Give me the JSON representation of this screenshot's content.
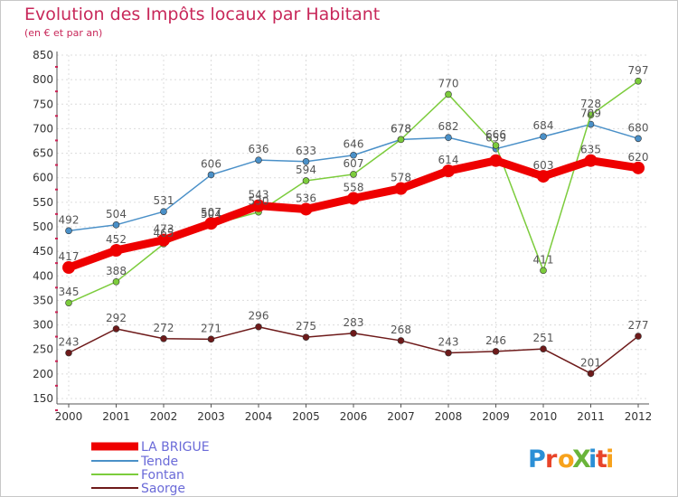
{
  "title": "Evolution des Impôts locaux par Habitant",
  "subtitle": "(en € et par an)",
  "logo": {
    "text": "ProXiti",
    "colors": [
      "#2b8fd6",
      "#e8442a",
      "#f7a21b",
      "#6ab43a",
      "#2b8fd6",
      "#e8442a",
      "#f7a21b"
    ]
  },
  "chart_data": {
    "type": "line",
    "x": [
      "2000",
      "2001",
      "2002",
      "2003",
      "2004",
      "2005",
      "2006",
      "2007",
      "2008",
      "2009",
      "2010",
      "2011",
      "2012"
    ],
    "ylim": [
      150,
      850
    ],
    "yticks": [
      150,
      200,
      250,
      300,
      350,
      400,
      450,
      500,
      550,
      600,
      650,
      700,
      750,
      800,
      850
    ],
    "grid": true,
    "legend_position": "bottom-left",
    "series": [
      {
        "name": "LA BRIGUE",
        "color": "#ee0000",
        "values": [
          417,
          452,
          473,
          507,
          543,
          536,
          558,
          578,
          614,
          635,
          603,
          635,
          620
        ]
      },
      {
        "name": "Tende",
        "color": "#4a90c8",
        "values": [
          492,
          504,
          531,
          606,
          636,
          633,
          646,
          678,
          682,
          659,
          684,
          709,
          680
        ]
      },
      {
        "name": "Fontan",
        "color": "#7ccc3c",
        "values": [
          345,
          388,
          465,
          504,
          530,
          594,
          607,
          678,
          770,
          666,
          411,
          728,
          797
        ]
      },
      {
        "name": "Saorge",
        "color": "#6e1a1a",
        "values": [
          243,
          292,
          272,
          271,
          296,
          275,
          283,
          268,
          243,
          246,
          251,
          201,
          277
        ]
      }
    ],
    "labels": {
      "LA BRIGUE": [
        "417",
        "452",
        "473",
        "507",
        "543",
        "536",
        "558",
        "578",
        "614",
        "",
        "603",
        "635",
        "620"
      ],
      "Tende": [
        "492",
        "504",
        "531",
        "606",
        "636",
        "633",
        "646",
        "678",
        "682",
        "659",
        "684",
        "709",
        "680"
      ],
      "Fontan": [
        "345",
        "388",
        "465",
        "504",
        "530",
        "594",
        "607",
        "678",
        "770",
        "666",
        "411",
        "728",
        "797"
      ],
      "Saorge": [
        "243",
        "292",
        "272",
        "271",
        "296",
        "275",
        "283",
        "268",
        "243",
        "246",
        "251",
        "201",
        "277"
      ]
    }
  }
}
